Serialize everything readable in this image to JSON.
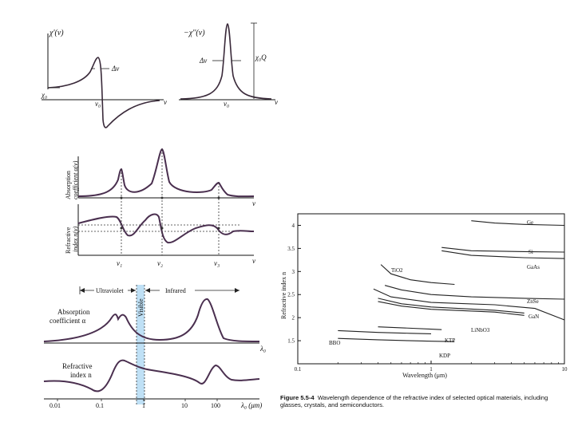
{
  "panel_susceptibility": {
    "left_ylabel": "χ'(ν)",
    "left_offset": "χ₀",
    "left_width": "Δν",
    "left_center": "ν₀",
    "left_xlabel": "ν",
    "right_ylabel": "−χ''(ν)",
    "right_width": "Δν",
    "right_peak": "χ₀Q",
    "right_center": "ν₀",
    "right_xlabel": "ν"
  },
  "panel_resonances": {
    "abs_ylabel_line1": "Absorption",
    "abs_ylabel_line2": "coefficient α(ν)",
    "ref_ylabel_line1": "Refractive",
    "ref_ylabel_line2": "index n(ν)",
    "xlabel_top": "ν",
    "xlabel_bottom": "ν",
    "ticks": [
      "ν₁",
      "ν₂",
      "ν₃"
    ]
  },
  "panel_wavelength": {
    "ultraviolet": "Ultraviolet",
    "visible": "Visible",
    "infrared": "Infrared",
    "abs_label_line1": "Absorption",
    "abs_label_line2": "coefficient α",
    "ref_label_line1": "Refractive",
    "ref_label_line2": "index n",
    "xaxis_label_top": "λ₀",
    "xaxis_label_bottom": "λ₀ (μm)",
    "ticks": [
      "0.01",
      "0.1",
      "1",
      "10",
      "100"
    ],
    "visible_band_color": "#bfe0f5"
  },
  "chart_data": {
    "type": "line",
    "title": "",
    "xlabel": "Wavelength (μm)",
    "ylabel": "Refractive index n",
    "xscale": "log",
    "xlim": [
      0.1,
      10
    ],
    "ylim": [
      1,
      4.25
    ],
    "x_ticks": [
      "0.1",
      "1",
      "10"
    ],
    "y_ticks": [
      "1.5",
      "2",
      "2.5",
      "3",
      "3.5",
      "4"
    ],
    "series": [
      {
        "name": "Ge",
        "x": [
          2,
          3,
          5,
          10
        ],
        "values": [
          4.1,
          4.05,
          4.02,
          4.0
        ]
      },
      {
        "name": "Si",
        "x": [
          1.2,
          2,
          5,
          10
        ],
        "values": [
          3.52,
          3.45,
          3.43,
          3.42
        ]
      },
      {
        "name": "GaAs",
        "x": [
          1.2,
          2,
          5,
          10
        ],
        "values": [
          3.45,
          3.35,
          3.3,
          3.28
        ]
      },
      {
        "name": "TiO2",
        "x": [
          0.42,
          0.5,
          0.7,
          1,
          1.5
        ],
        "values": [
          3.15,
          2.95,
          2.82,
          2.76,
          2.72
        ]
      },
      {
        "name": "ZnSe",
        "x": [
          0.45,
          0.6,
          1,
          2,
          5,
          10
        ],
        "values": [
          2.7,
          2.6,
          2.5,
          2.45,
          2.42,
          2.4
        ]
      },
      {
        "name": "GaN",
        "x": [
          0.37,
          0.5,
          1,
          3,
          6,
          10
        ],
        "values": [
          2.62,
          2.45,
          2.33,
          2.28,
          2.2,
          1.95
        ]
      },
      {
        "name": "LiNbO3 e",
        "x": [
          0.4,
          0.6,
          1,
          3,
          5
        ],
        "values": [
          2.35,
          2.25,
          2.18,
          2.12,
          2.05
        ]
      },
      {
        "name": "LiNbO3 o",
        "x": [
          0.4,
          0.6,
          1,
          3,
          5
        ],
        "values": [
          2.42,
          2.3,
          2.23,
          2.16,
          2.1
        ]
      },
      {
        "name": "KTP",
        "x": [
          0.4,
          0.6,
          1,
          1.2
        ],
        "values": [
          1.8,
          1.78,
          1.75,
          1.74
        ]
      },
      {
        "name": "BBO",
        "x": [
          0.2,
          0.4,
          0.7,
          1
        ],
        "values": [
          1.72,
          1.68,
          1.66,
          1.65
        ]
      },
      {
        "name": "KDP",
        "x": [
          0.2,
          0.4,
          0.7,
          1,
          1.5
        ],
        "values": [
          1.55,
          1.52,
          1.5,
          1.49,
          1.48
        ]
      }
    ],
    "labels": [
      "Ge",
      "Si",
      "GaAs",
      "TiO2",
      "ZnSe",
      "GaN",
      "LiNbO3",
      "KTP",
      "BBO",
      "KDP"
    ]
  },
  "caption": {
    "figure_label": "Figure 5.5-4",
    "text": "Wavelength dependence of the refractive index of selected optical materials, including glasses, crystals, and semiconductors."
  }
}
